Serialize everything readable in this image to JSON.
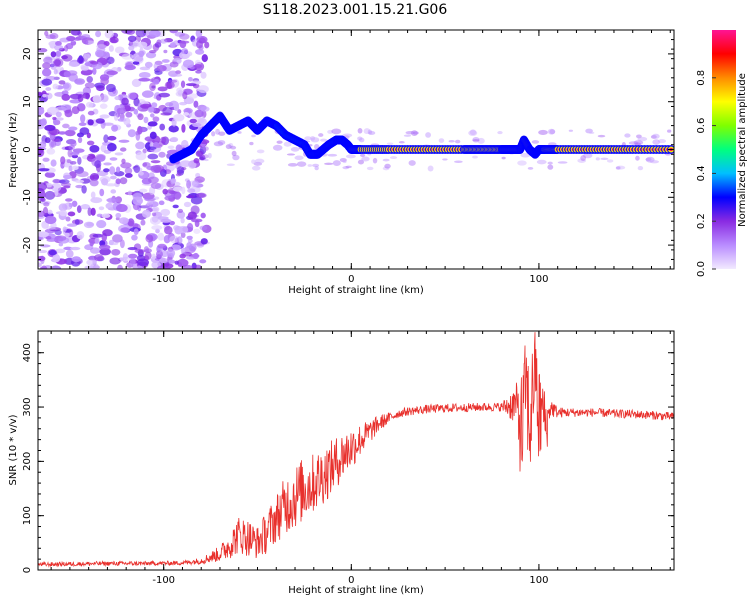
{
  "title": "S118.2023.001.15.21.G06",
  "chart_data": [
    {
      "type": "heatmap",
      "xlabel": "Height of straight line (km)",
      "ylabel": "Frequency (Hz)",
      "xlim": [
        -167,
        172
      ],
      "ylim": [
        -25,
        25
      ],
      "xticks": [
        -100,
        0,
        100
      ],
      "yticks": [
        -20,
        -10,
        0,
        10,
        20
      ],
      "colorbar": {
        "label": "Normalized spectral amplitude",
        "range": [
          0.0,
          1.0
        ],
        "ticks": [
          0.0,
          0.2,
          0.4,
          0.6,
          0.8
        ],
        "colors": [
          "#f2eaff",
          "#b98cff",
          "#8a2be2",
          "#0000ff",
          "#00bfff",
          "#00ff7f",
          "#7fff00",
          "#ffff00",
          "#ff8c00",
          "#ff0000",
          "#ff1493"
        ]
      },
      "ridge": {
        "x": [
          -95,
          -90,
          -85,
          -80,
          -75,
          -70,
          -65,
          -60,
          -55,
          -50,
          -45,
          -40,
          -35,
          -30,
          -25,
          -22,
          -18,
          -15,
          -12,
          -8,
          -5,
          -2,
          0,
          5,
          20,
          40,
          60,
          70,
          80,
          85,
          90,
          92,
          95,
          98,
          100,
          103,
          110,
          130,
          150,
          172
        ],
        "y": [
          -2,
          -1,
          0,
          3,
          5,
          7,
          4,
          5,
          6,
          4,
          6,
          5,
          3,
          2,
          1,
          -1,
          -1,
          0,
          1,
          2,
          2,
          1,
          0,
          0,
          0,
          0,
          0,
          0,
          0,
          0,
          0,
          2,
          0,
          -1,
          0,
          0,
          0,
          0,
          0,
          0
        ]
      }
    },
    {
      "type": "line",
      "xlabel": "Height of straight line (km)",
      "ylabel": "SNR (10 * v/v)",
      "xlim": [
        -167,
        172
      ],
      "ylim": [
        0,
        440
      ],
      "xticks": [
        -100,
        0,
        100
      ],
      "yticks": [
        0,
        100,
        200,
        300,
        400
      ],
      "color": "#e8302c",
      "x": [
        -167,
        -150,
        -130,
        -110,
        -90,
        -80,
        -70,
        -65,
        -60,
        -55,
        -50,
        -45,
        -40,
        -35,
        -30,
        -25,
        -20,
        -15,
        -10,
        -5,
        0,
        5,
        10,
        15,
        20,
        25,
        30,
        40,
        50,
        60,
        70,
        80,
        88,
        91,
        93,
        95,
        98,
        100,
        102,
        104,
        106,
        110,
        120,
        130,
        140,
        150,
        160,
        172
      ],
      "y": [
        10,
        11,
        12,
        12,
        13,
        17,
        30,
        45,
        65,
        60,
        50,
        70,
        95,
        120,
        135,
        150,
        160,
        175,
        190,
        210,
        225,
        240,
        255,
        270,
        280,
        288,
        292,
        296,
        298,
        299,
        300,
        300,
        305,
        250,
        350,
        260,
        380,
        270,
        300,
        260,
        300,
        290,
        290,
        290,
        288,
        287,
        285,
        282
      ],
      "amplitude": [
        4,
        4,
        4,
        4,
        4,
        6,
        15,
        25,
        35,
        35,
        30,
        40,
        45,
        55,
        60,
        60,
        55,
        55,
        50,
        45,
        40,
        30,
        22,
        15,
        10,
        8,
        8,
        8,
        8,
        8,
        8,
        8,
        40,
        120,
        80,
        120,
        70,
        110,
        60,
        50,
        20,
        10,
        8,
        8,
        8,
        8,
        8,
        8
      ]
    }
  ]
}
